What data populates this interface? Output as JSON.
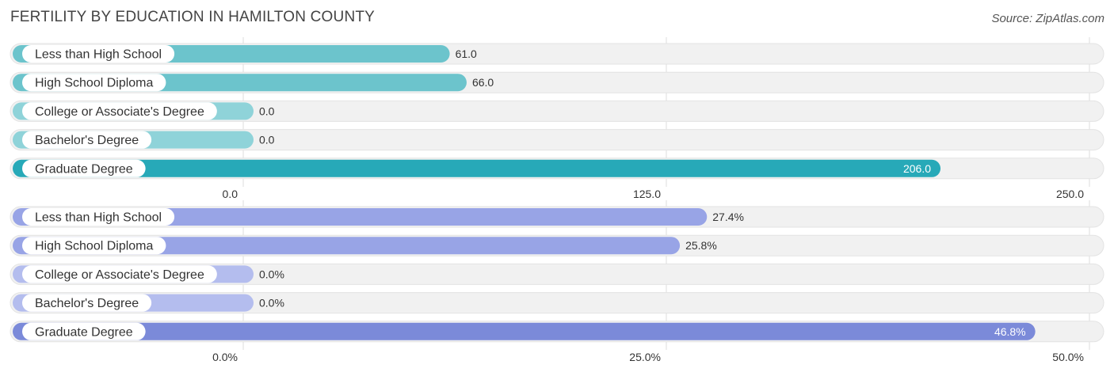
{
  "header": {
    "title": "FERTILITY BY EDUCATION IN HAMILTON COUNTY",
    "source": "Source: ZipAtlas.com"
  },
  "chart_data": [
    {
      "type": "bar",
      "orientation": "horizontal",
      "categories": [
        "Less than High School",
        "High School Diploma",
        "College or Associate's Degree",
        "Bachelor's Degree",
        "Graduate Degree"
      ],
      "values": [
        61.0,
        66.0,
        0.0,
        0.0,
        206.0
      ],
      "value_labels": [
        "61.0",
        "66.0",
        "0.0",
        "0.0",
        "206.0"
      ],
      "xlim": [
        0,
        250
      ],
      "ticks": [
        0,
        125,
        250
      ],
      "tick_labels": [
        "0.0",
        "125.0",
        "250.0"
      ],
      "bar_colors": [
        "#6cc4cc",
        "#6cc4cc",
        "#8fd3d9",
        "#8fd3d9",
        "#27a9b8"
      ],
      "grid": true
    },
    {
      "type": "bar",
      "orientation": "horizontal",
      "categories": [
        "Less than High School",
        "High School Diploma",
        "College or Associate's Degree",
        "Bachelor's Degree",
        "Graduate Degree"
      ],
      "values": [
        27.4,
        25.8,
        0.0,
        0.0,
        46.8
      ],
      "value_labels": [
        "27.4%",
        "25.8%",
        "0.0%",
        "0.0%",
        "46.8%"
      ],
      "xlim": [
        0,
        50
      ],
      "ticks": [
        0,
        25,
        50
      ],
      "tick_labels": [
        "0.0%",
        "25.0%",
        "50.0%"
      ],
      "bar_colors": [
        "#98a4e6",
        "#98a4e6",
        "#b4bdee",
        "#b4bdee",
        "#7b8ad9"
      ],
      "grid": true
    }
  ]
}
